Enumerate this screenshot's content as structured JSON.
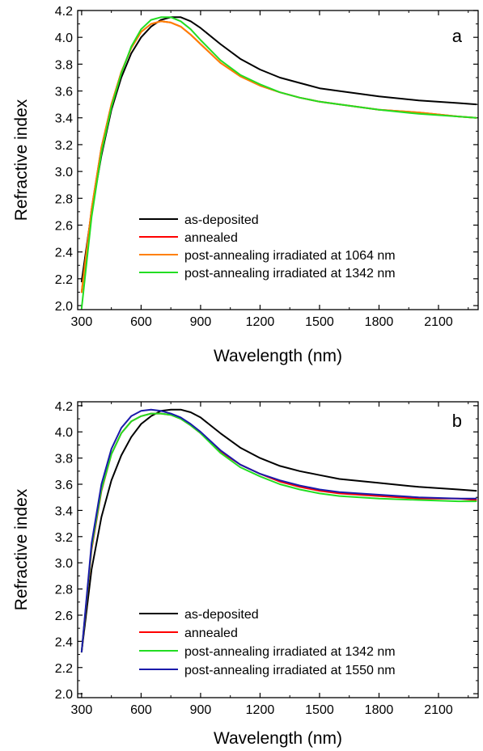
{
  "chart_data": [
    {
      "type": "line",
      "panel_label": "a",
      "xlabel": "Wavelength (nm)",
      "ylabel": "Refractive index",
      "xlim": [
        280,
        2300
      ],
      "ylim": [
        1.97,
        4.2
      ],
      "xticks": [
        300,
        600,
        900,
        1200,
        1500,
        1800,
        2100
      ],
      "yticks": [
        "2.0",
        "2.2",
        "2.4",
        "2.6",
        "2.8",
        "3.0",
        "3.2",
        "3.4",
        "3.6",
        "3.8",
        "4.0",
        "4.2"
      ],
      "grid": false,
      "legend_position": "lower-center",
      "series": [
        {
          "name": "as-deposited",
          "color": "#000000",
          "x": [
            300,
            350,
            400,
            450,
            500,
            550,
            600,
            650,
            700,
            750,
            800,
            850,
            900,
            1000,
            1100,
            1200,
            1300,
            1400,
            1500,
            1600,
            1800,
            2000,
            2200,
            2290
          ],
          "y": [
            2.18,
            2.7,
            3.12,
            3.46,
            3.7,
            3.88,
            4.0,
            4.08,
            4.13,
            4.15,
            4.15,
            4.12,
            4.07,
            3.95,
            3.84,
            3.76,
            3.7,
            3.66,
            3.62,
            3.6,
            3.56,
            3.53,
            3.51,
            3.5
          ]
        },
        {
          "name": "annealed",
          "color": "#ff0000",
          "x": [
            300,
            350,
            400,
            450,
            500,
            550,
            600,
            650,
            700,
            750,
            800,
            850,
            900,
            1000,
            1100,
            1200,
            1300,
            1400,
            1500,
            1600,
            1800,
            2000,
            2200,
            2290
          ],
          "y": [
            2.1,
            2.72,
            3.18,
            3.5,
            3.74,
            3.92,
            4.04,
            4.1,
            4.12,
            4.11,
            4.08,
            4.02,
            3.95,
            3.81,
            3.71,
            3.64,
            3.59,
            3.55,
            3.52,
            3.5,
            3.46,
            3.44,
            3.41,
            3.4
          ]
        },
        {
          "name": "post-annealing irradiated at 1064 nm",
          "color": "#ff8000",
          "x": [
            300,
            350,
            400,
            450,
            500,
            550,
            600,
            650,
            700,
            750,
            800,
            850,
            900,
            1000,
            1100,
            1200,
            1300,
            1400,
            1500,
            1600,
            1800,
            2000,
            2200,
            2290
          ],
          "y": [
            2.1,
            2.72,
            3.18,
            3.5,
            3.74,
            3.92,
            4.04,
            4.1,
            4.12,
            4.11,
            4.08,
            4.02,
            3.95,
            3.81,
            3.71,
            3.64,
            3.59,
            3.55,
            3.52,
            3.5,
            3.46,
            3.44,
            3.41,
            3.4
          ]
        },
        {
          "name": "post-annealing irradiated at 1342 nm",
          "color": "#22dd22",
          "x": [
            300,
            350,
            400,
            450,
            500,
            550,
            600,
            650,
            700,
            750,
            800,
            850,
            900,
            1000,
            1100,
            1200,
            1300,
            1400,
            1500,
            1600,
            1800,
            2000,
            2200,
            2290
          ],
          "y": [
            1.98,
            2.66,
            3.14,
            3.48,
            3.73,
            3.93,
            4.06,
            4.13,
            4.15,
            4.15,
            4.12,
            4.06,
            3.98,
            3.83,
            3.72,
            3.65,
            3.59,
            3.55,
            3.52,
            3.5,
            3.46,
            3.43,
            3.41,
            3.4
          ]
        }
      ]
    },
    {
      "type": "line",
      "panel_label": "b",
      "xlabel": "Wavelength (nm)",
      "ylabel": "Refractive index",
      "xlim": [
        280,
        2300
      ],
      "ylim": [
        1.97,
        4.23
      ],
      "xticks": [
        300,
        600,
        900,
        1200,
        1500,
        1800,
        2100
      ],
      "yticks": [
        "2.0",
        "2.2",
        "2.4",
        "2.6",
        "2.8",
        "3.0",
        "3.2",
        "3.4",
        "3.6",
        "3.8",
        "4.0",
        "4.2"
      ],
      "grid": false,
      "legend_position": "lower-center",
      "series": [
        {
          "name": "as-deposited",
          "color": "#000000",
          "x": [
            300,
            350,
            400,
            450,
            500,
            550,
            600,
            650,
            700,
            750,
            800,
            850,
            900,
            1000,
            1100,
            1200,
            1300,
            1400,
            1500,
            1600,
            1800,
            2000,
            2200,
            2290
          ],
          "y": [
            2.32,
            2.95,
            3.35,
            3.63,
            3.82,
            3.96,
            4.06,
            4.12,
            4.16,
            4.17,
            4.17,
            4.15,
            4.11,
            3.99,
            3.88,
            3.8,
            3.74,
            3.7,
            3.67,
            3.64,
            3.61,
            3.58,
            3.56,
            3.55
          ]
        },
        {
          "name": "annealed",
          "color": "#ff0000",
          "x": [
            300,
            350,
            400,
            450,
            500,
            550,
            600,
            650,
            700,
            750,
            800,
            850,
            900,
            1000,
            1100,
            1200,
            1300,
            1400,
            1500,
            1600,
            1800,
            2000,
            2200,
            2290
          ],
          "y": [
            2.32,
            3.1,
            3.55,
            3.83,
            3.99,
            4.08,
            4.12,
            4.14,
            4.14,
            4.13,
            4.1,
            4.05,
            3.99,
            3.85,
            3.75,
            3.68,
            3.62,
            3.58,
            3.55,
            3.53,
            3.51,
            3.49,
            3.49,
            3.48
          ]
        },
        {
          "name": "post-annealing irradiated at 1342 nm",
          "color": "#22dd22",
          "x": [
            300,
            350,
            400,
            450,
            500,
            550,
            600,
            650,
            700,
            750,
            800,
            850,
            900,
            1000,
            1100,
            1200,
            1300,
            1400,
            1500,
            1600,
            1800,
            2000,
            2200,
            2290
          ],
          "y": [
            2.32,
            3.12,
            3.56,
            3.83,
            3.99,
            4.08,
            4.12,
            4.14,
            4.14,
            4.13,
            4.1,
            4.05,
            3.99,
            3.84,
            3.73,
            3.66,
            3.6,
            3.56,
            3.53,
            3.51,
            3.49,
            3.48,
            3.47,
            3.47
          ]
        },
        {
          "name": "post-annealing irradiated at 1550 nm",
          "color": "#1a1aaa",
          "x": [
            300,
            350,
            400,
            450,
            500,
            550,
            600,
            650,
            700,
            750,
            800,
            850,
            900,
            1000,
            1100,
            1200,
            1300,
            1400,
            1500,
            1600,
            1800,
            2000,
            2200,
            2290
          ],
          "y": [
            2.32,
            3.15,
            3.6,
            3.87,
            4.03,
            4.12,
            4.16,
            4.17,
            4.16,
            4.14,
            4.11,
            4.06,
            4.0,
            3.86,
            3.75,
            3.68,
            3.63,
            3.59,
            3.56,
            3.54,
            3.52,
            3.5,
            3.49,
            3.49
          ]
        }
      ]
    }
  ]
}
